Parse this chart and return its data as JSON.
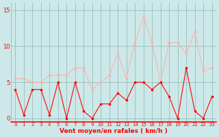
{
  "x": [
    0,
    1,
    2,
    3,
    4,
    5,
    6,
    7,
    8,
    9,
    10,
    11,
    12,
    13,
    14,
    15,
    16,
    17,
    18,
    19,
    20,
    21,
    22,
    23
  ],
  "avg_wind": [
    4,
    0.5,
    4,
    4,
    0.5,
    5,
    0,
    5,
    1,
    0,
    2,
    2,
    3.5,
    2.5,
    5,
    5,
    4,
    5,
    3,
    0,
    7,
    1,
    0,
    3
  ],
  "gusts": [
    5.5,
    5.5,
    5,
    5,
    6,
    6,
    6,
    7,
    7,
    4,
    5,
    6,
    9,
    5.5,
    10.5,
    14,
    10.5,
    5,
    10.5,
    10.5,
    9,
    12,
    6.5,
    7
  ],
  "avg_color": "#ff0000",
  "gusts_color": "#ffb0b0",
  "bg_color": "#cce8e8",
  "grid_color": "#99bbbb",
  "xlabel": "Vent moyen/en rafales ( km/h )",
  "xlabel_color": "#ff0000",
  "ylim": [
    -0.5,
    16
  ],
  "yticks": [
    0,
    5,
    10,
    15
  ],
  "xticks": [
    0,
    1,
    2,
    3,
    4,
    5,
    6,
    7,
    8,
    9,
    10,
    11,
    12,
    13,
    14,
    15,
    16,
    17,
    18,
    19,
    20,
    21,
    22,
    23
  ],
  "marker": "s",
  "markersize": 2,
  "linewidth": 0.8,
  "tick_fontsize": 5,
  "xlabel_fontsize": 6.5
}
